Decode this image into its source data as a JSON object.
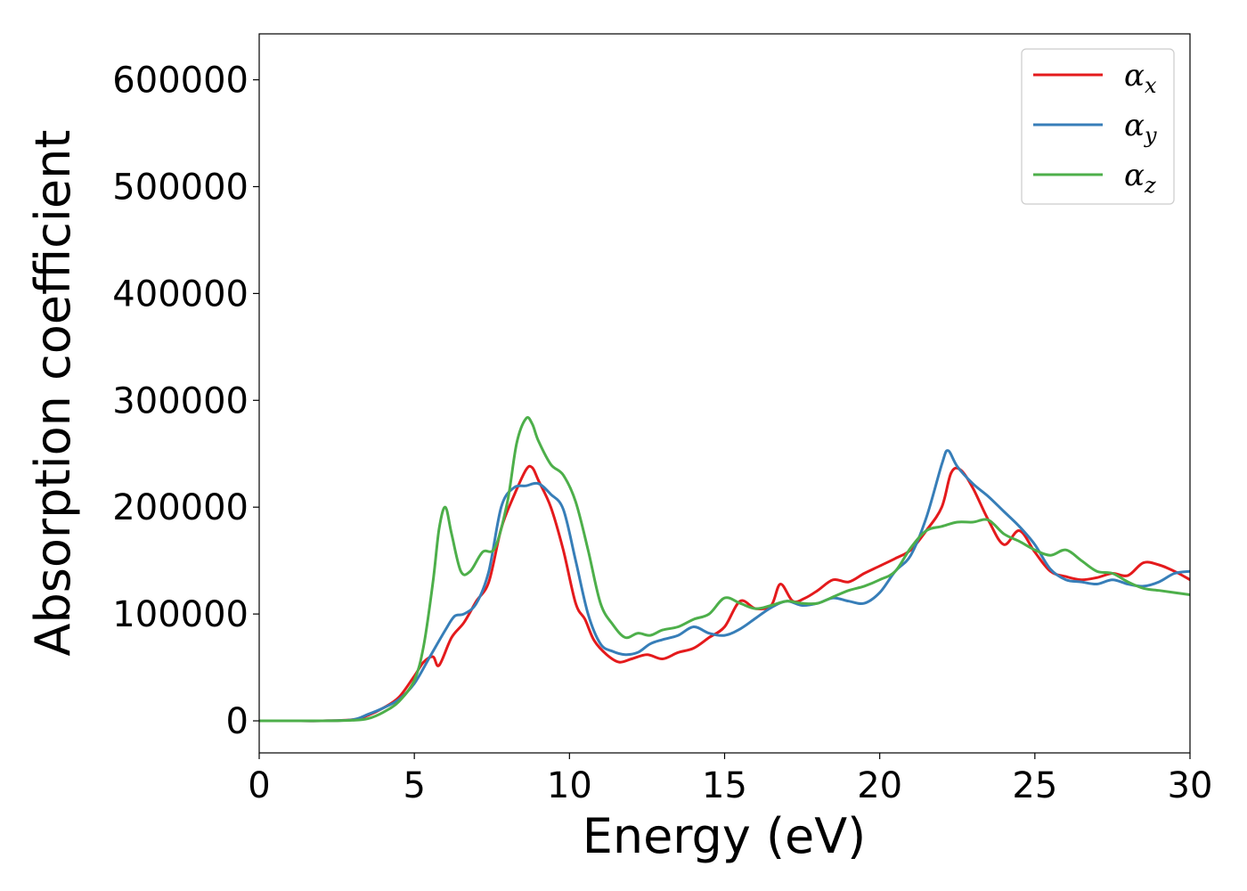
{
  "chart_data": {
    "type": "line",
    "title": "",
    "xlabel": "Energy (eV)",
    "ylabel": "Absorption coefficient",
    "xlim": [
      0,
      30
    ],
    "ylim": [
      -30000,
      643000
    ],
    "xticks": [
      0,
      5,
      10,
      15,
      20,
      25,
      30
    ],
    "yticks": [
      0,
      100000,
      200000,
      300000,
      400000,
      500000,
      600000
    ],
    "xtick_labels": [
      "0",
      "5",
      "10",
      "15",
      "20",
      "25",
      "30"
    ],
    "ytick_labels": [
      "0",
      "100000",
      "200000",
      "300000",
      "400000",
      "500000",
      "600000"
    ],
    "grid": false,
    "legend_position": "top-right",
    "series": [
      {
        "name": "αx",
        "legend_base": "α",
        "legend_sub": "x",
        "color": "#e41a1c",
        "x": [
          0,
          1,
          2,
          3,
          3.5,
          4,
          4.5,
          5,
          5.3,
          5.6,
          5.8,
          6.2,
          6.6,
          7,
          7.4,
          7.8,
          8.2,
          8.6,
          8.8,
          9,
          9.4,
          9.8,
          10.2,
          10.5,
          10.8,
          11.2,
          11.6,
          12,
          12.5,
          13,
          13.5,
          14,
          14.5,
          15,
          15.5,
          16,
          16.5,
          16.8,
          17.2,
          17.6,
          18,
          18.5,
          19,
          19.5,
          20,
          20.5,
          21,
          21.5,
          22,
          22.3,
          22.6,
          23,
          23.5,
          24,
          24.5,
          25,
          25.5,
          26,
          26.5,
          27,
          27.5,
          28,
          28.5,
          29,
          29.5,
          30
        ],
        "y": [
          0,
          0,
          0,
          1000,
          5000,
          12000,
          22000,
          42000,
          55000,
          60000,
          52000,
          78000,
          92000,
          112000,
          130000,
          180000,
          210000,
          235000,
          237000,
          225000,
          200000,
          160000,
          110000,
          95000,
          75000,
          62000,
          55000,
          58000,
          62000,
          58000,
          64000,
          68000,
          78000,
          88000,
          112000,
          105000,
          108000,
          128000,
          112000,
          115000,
          122000,
          132000,
          130000,
          138000,
          145000,
          152000,
          160000,
          178000,
          200000,
          232000,
          235000,
          218000,
          188000,
          165000,
          178000,
          158000,
          140000,
          135000,
          132000,
          134000,
          138000,
          136000,
          148000,
          146000,
          140000,
          132000
        ]
      },
      {
        "name": "αy",
        "legend_base": "α",
        "legend_sub": "y",
        "color": "#377eb8",
        "x": [
          0,
          1,
          2,
          3,
          3.5,
          4,
          4.5,
          5,
          5.5,
          6,
          6.3,
          6.6,
          7,
          7.4,
          7.8,
          8.2,
          8.6,
          9,
          9.4,
          9.8,
          10.2,
          10.6,
          11,
          11.4,
          11.8,
          12.2,
          12.6,
          13,
          13.5,
          14,
          14.5,
          15,
          15.5,
          16,
          16.5,
          17,
          17.5,
          18,
          18.5,
          19,
          19.5,
          20,
          20.5,
          21,
          21.5,
          22,
          22.2,
          22.5,
          23,
          23.5,
          24,
          24.5,
          25,
          25.5,
          26,
          26.5,
          27,
          27.5,
          28,
          28.5,
          29,
          29.5,
          30
        ],
        "y": [
          0,
          0,
          0,
          1000,
          6000,
          12000,
          20000,
          35000,
          60000,
          85000,
          98000,
          100000,
          110000,
          140000,
          200000,
          218000,
          220000,
          222000,
          212000,
          198000,
          150000,
          100000,
          72000,
          65000,
          62000,
          64000,
          72000,
          76000,
          80000,
          88000,
          82000,
          80000,
          86000,
          96000,
          106000,
          112000,
          108000,
          110000,
          115000,
          112000,
          110000,
          120000,
          140000,
          155000,
          190000,
          240000,
          253000,
          238000,
          222000,
          210000,
          196000,
          182000,
          165000,
          142000,
          132000,
          130000,
          128000,
          132000,
          128000,
          126000,
          130000,
          138000,
          140000
        ]
      },
      {
        "name": "αz",
        "legend_base": "α",
        "legend_sub": "z",
        "color": "#4daf4a",
        "x": [
          0,
          1,
          2,
          3,
          3.5,
          4,
          4.5,
          5,
          5.3,
          5.6,
          5.8,
          6,
          6.2,
          6.5,
          6.8,
          7.2,
          7.6,
          8,
          8.3,
          8.6,
          8.8,
          9,
          9.4,
          9.8,
          10.2,
          10.6,
          11,
          11.4,
          11.8,
          12.2,
          12.6,
          13,
          13.5,
          14,
          14.5,
          15,
          15.5,
          16,
          16.5,
          17,
          17.5,
          18,
          18.5,
          19,
          19.5,
          20,
          20.5,
          21,
          21.5,
          22,
          22.5,
          23,
          23.5,
          24,
          24.5,
          25,
          25.5,
          26,
          26.5,
          27,
          27.5,
          28,
          28.5,
          29,
          29.5,
          30
        ],
        "y": [
          0,
          0,
          0,
          500,
          2000,
          8000,
          18000,
          38000,
          70000,
          130000,
          180000,
          200000,
          175000,
          140000,
          140000,
          158000,
          162000,
          205000,
          260000,
          283000,
          278000,
          262000,
          240000,
          230000,
          205000,
          160000,
          110000,
          90000,
          78000,
          82000,
          80000,
          85000,
          88000,
          95000,
          100000,
          115000,
          110000,
          105000,
          108000,
          112000,
          110000,
          110000,
          116000,
          122000,
          126000,
          132000,
          140000,
          162000,
          178000,
          182000,
          186000,
          186000,
          188000,
          175000,
          168000,
          160000,
          155000,
          160000,
          150000,
          140000,
          138000,
          130000,
          124000,
          122000,
          120000,
          118000
        ]
      }
    ]
  }
}
